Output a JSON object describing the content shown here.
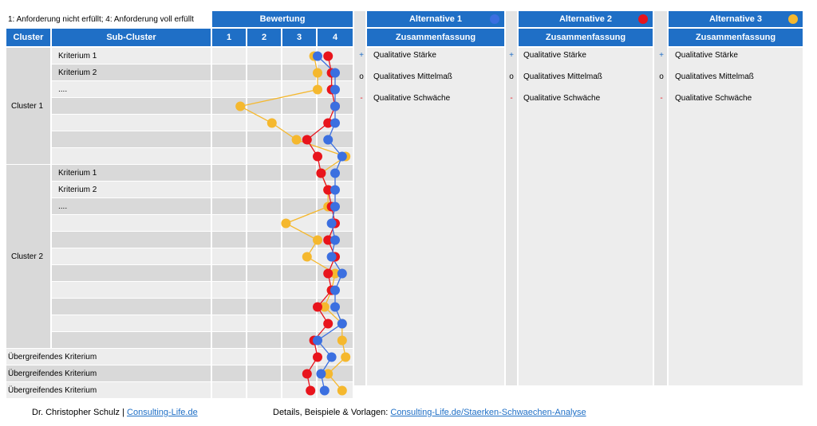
{
  "legend_text": "1: Anforderung nicht erfüllt; 4: Anforderung voll erfüllt",
  "header": {
    "bewertung": "Bewertung",
    "cluster": "Cluster",
    "sub_cluster": "Sub-Cluster",
    "scale": [
      "1",
      "2",
      "3",
      "4"
    ]
  },
  "alternatives": [
    {
      "title": "Alternative 1",
      "subtitle": "Zusammenfassung",
      "color": "#3b6fe0",
      "items": [
        {
          "mark": "+",
          "text": "Qualitative Stärke"
        },
        {
          "mark": "o",
          "text": "Qualitatives Mittelmaß"
        },
        {
          "mark": "-",
          "text": "Qualitative Schwäche"
        }
      ]
    },
    {
      "title": "Alternative 2",
      "subtitle": "Zusammenfassung",
      "color": "#e8141c",
      "items": [
        {
          "mark": "+",
          "text": "Qualitative Stärke"
        },
        {
          "mark": "o",
          "text": "Qualitatives Mittelmaß"
        },
        {
          "mark": "-",
          "text": "Qualitative Schwäche"
        }
      ]
    },
    {
      "title": "Alternative 3",
      "subtitle": "Zusammenfassung",
      "color": "#f5b82e",
      "items": [
        {
          "mark": "+",
          "text": "Qualitative Stärke"
        }
      ]
    }
  ],
  "mark_colors": {
    "+": "#1f6fc6",
    "o": "#000000",
    "-": "#e8141c"
  },
  "clusters": [
    {
      "name": "Cluster 1",
      "labels": [
        "Kriterium 1",
        "Kriterium 2",
        "....",
        "",
        "",
        "",
        ""
      ]
    },
    {
      "name": "Cluster 2",
      "labels": [
        "Kriterium 1",
        "Kriterium 2",
        "....",
        "",
        "",
        "",
        "",
        "",
        "",
        "",
        ""
      ]
    }
  ],
  "ueber_labels": [
    "Übergreifendes Kriterium",
    "Übergreifendes Kriterium",
    "Übergreifendes Kriterium"
  ],
  "chart_data": {
    "type": "line",
    "xlim": [
      0.5,
      4.5
    ],
    "x_ticks": [
      "1",
      "2",
      "3",
      "4"
    ],
    "series": [
      {
        "name": "Alternative 1",
        "color": "#3b6fe0",
        "values": [
          3.5,
          4.0,
          4.0,
          4.0,
          4.0,
          3.8,
          4.2,
          4.0,
          4.0,
          4.0,
          3.9,
          4.0,
          3.9,
          4.2,
          4.0,
          4.0,
          4.2,
          3.5,
          3.9,
          3.6,
          3.7
        ]
      },
      {
        "name": "Alternative 2",
        "color": "#e8141c",
        "values": [
          3.8,
          3.9,
          3.9,
          4.0,
          3.8,
          3.2,
          3.5,
          3.6,
          3.8,
          3.9,
          4.0,
          3.8,
          4.0,
          3.8,
          3.9,
          3.5,
          3.8,
          3.4,
          3.5,
          3.2,
          3.3
        ]
      },
      {
        "name": "Alternative 3",
        "color": "#f5b82e",
        "values": [
          3.4,
          3.5,
          3.5,
          1.3,
          2.2,
          2.9,
          4.3,
          3.6,
          3.8,
          3.8,
          2.6,
          3.5,
          3.2,
          4.0,
          3.9,
          3.7,
          4.2,
          4.2,
          4.3,
          3.8,
          4.2
        ]
      }
    ]
  },
  "footer": {
    "author": "Dr. Christopher Schulz | ",
    "author_link": "Consulting-Life.de",
    "details": "Details, Beispiele & Vorlagen: ",
    "details_link": "Consulting-Life.de/Staerken-Schwaechen-Analyse"
  }
}
